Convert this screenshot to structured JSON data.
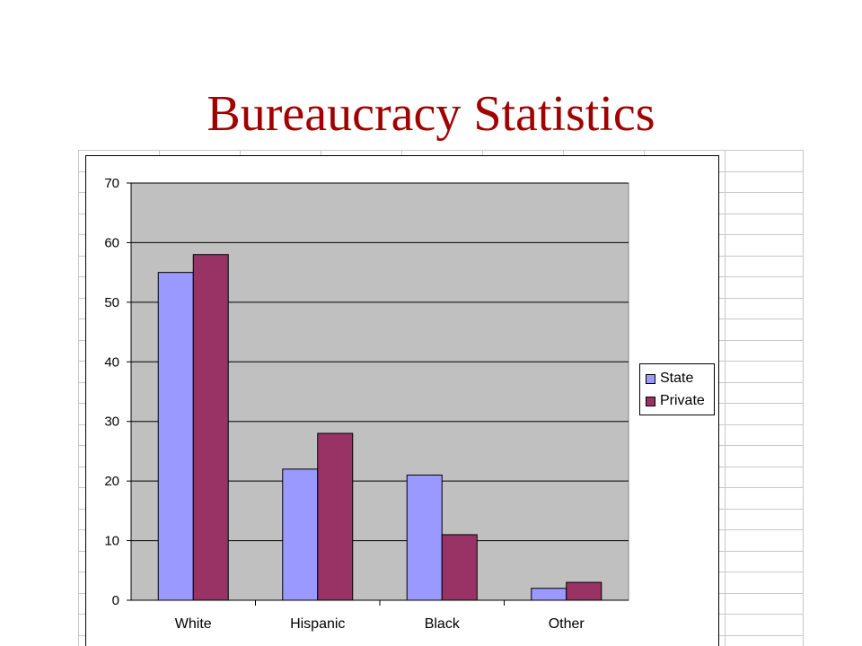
{
  "slide": {
    "title": "Bureaucracy Statistics"
  },
  "colors": {
    "title": "#a00000",
    "plot_background": "#c0c0c0",
    "state": "#9999ff",
    "private": "#993366",
    "sheet_grid": "#c8c8c8"
  },
  "chart_data": {
    "type": "bar",
    "categories": [
      "White",
      "Hispanic",
      "Black",
      "Other"
    ],
    "series": [
      {
        "name": "State",
        "values": [
          55,
          22,
          21,
          2
        ]
      },
      {
        "name": "Private",
        "values": [
          58,
          28,
          11,
          3
        ]
      }
    ],
    "ylim": [
      0,
      70
    ],
    "yticks": [
      0,
      10,
      20,
      30,
      40,
      50,
      60,
      70
    ],
    "title": "",
    "xlabel": "",
    "ylabel": "",
    "grid": true,
    "legend": "right"
  }
}
